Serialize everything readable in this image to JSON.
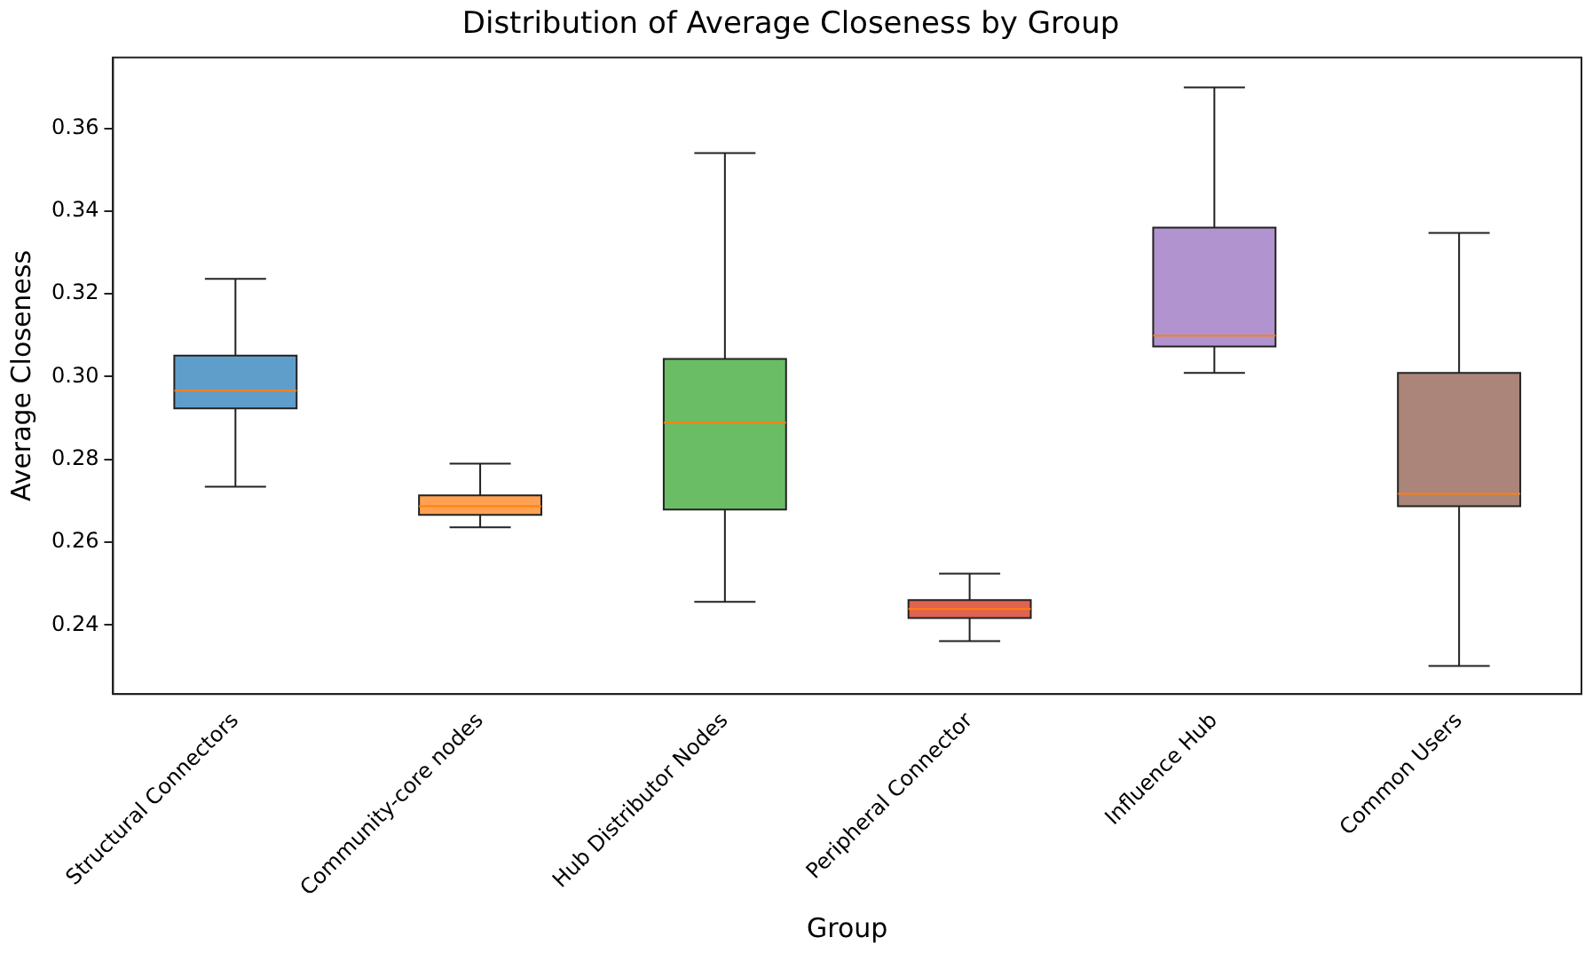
{
  "chart_data": {
    "type": "box",
    "title": "Distribution of Average Closeness by Group",
    "xlabel": "Group",
    "ylabel": "Average Closeness",
    "categories": [
      "Structural Connectors",
      "Community-core nodes",
      "Hub Distributor Nodes",
      "Peripheral Connector",
      "Influence Hub",
      "Common Users"
    ],
    "boxes": [
      {
        "low": 0.2734,
        "q1": 0.2923,
        "median": 0.2966,
        "q3": 0.3051,
        "high": 0.3236
      },
      {
        "low": 0.2636,
        "q1": 0.2666,
        "median": 0.2687,
        "q3": 0.2713,
        "high": 0.279
      },
      {
        "low": 0.2456,
        "q1": 0.2679,
        "median": 0.2889,
        "q3": 0.3043,
        "high": 0.354
      },
      {
        "low": 0.2361,
        "q1": 0.2417,
        "median": 0.2439,
        "q3": 0.246,
        "high": 0.2524
      },
      {
        "low": 0.3009,
        "q1": 0.3073,
        "median": 0.3099,
        "q3": 0.336,
        "high": 0.3699
      },
      {
        "low": 0.2301,
        "q1": 0.2687,
        "median": 0.2717,
        "q3": 0.3009,
        "high": 0.3347
      }
    ],
    "colors": [
      "#5f9ecb",
      "#ffa152",
      "#6abd65",
      "#e0624f",
      "#b193cf",
      "#ab8579"
    ],
    "ylim": [
      0.2233,
      0.3771
    ],
    "yticks": [
      0.24,
      0.26,
      0.28,
      {
        "value": 0.3,
        "label": "0.30"
      },
      0.32,
      0.34,
      0.36
    ],
    "grid": false,
    "legend": false
  }
}
